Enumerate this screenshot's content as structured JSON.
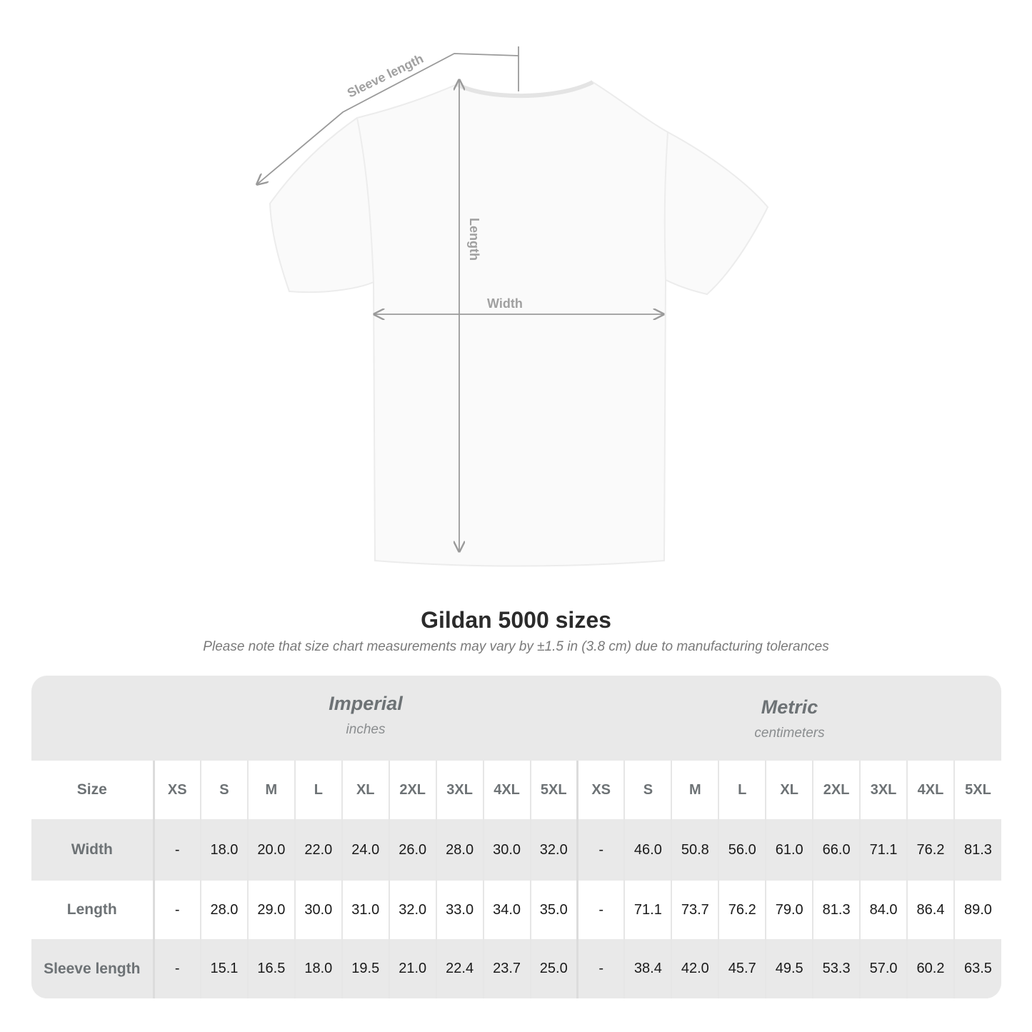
{
  "diagram": {
    "labels": {
      "sleeve": "Sleeve length",
      "length": "Length",
      "width": "Width"
    },
    "line_color": "#9a9a9a"
  },
  "title": "Gildan 5000 sizes",
  "subtitle": "Please note that size chart measurements may vary by ±1.5 in (3.8 cm) due to manufacturing tolerances",
  "table": {
    "imperial": {
      "name": "Imperial",
      "unit": "inches"
    },
    "metric": {
      "name": "Metric",
      "unit": "centimeters"
    },
    "size_label": "Size",
    "sizes": [
      "XS",
      "S",
      "M",
      "L",
      "XL",
      "2XL",
      "3XL",
      "4XL",
      "5XL"
    ],
    "rows": [
      {
        "label": "Width",
        "imperial": [
          "-",
          "18.0",
          "20.0",
          "22.0",
          "24.0",
          "26.0",
          "28.0",
          "30.0",
          "32.0"
        ],
        "metric": [
          "-",
          "46.0",
          "50.8",
          "56.0",
          "61.0",
          "66.0",
          "71.1",
          "76.2",
          "81.3"
        ]
      },
      {
        "label": "Length",
        "imperial": [
          "-",
          "28.0",
          "29.0",
          "30.0",
          "31.0",
          "32.0",
          "33.0",
          "34.0",
          "35.0"
        ],
        "metric": [
          "-",
          "71.1",
          "73.7",
          "76.2",
          "79.0",
          "81.3",
          "84.0",
          "86.4",
          "89.0"
        ]
      },
      {
        "label": "Sleeve length",
        "imperial": [
          "-",
          "15.1",
          "16.5",
          "18.0",
          "19.5",
          "21.0",
          "22.4",
          "23.7",
          "25.0"
        ],
        "metric": [
          "-",
          "38.4",
          "42.0",
          "45.7",
          "49.5",
          "53.3",
          "57.0",
          "60.2",
          "63.5"
        ]
      }
    ]
  }
}
